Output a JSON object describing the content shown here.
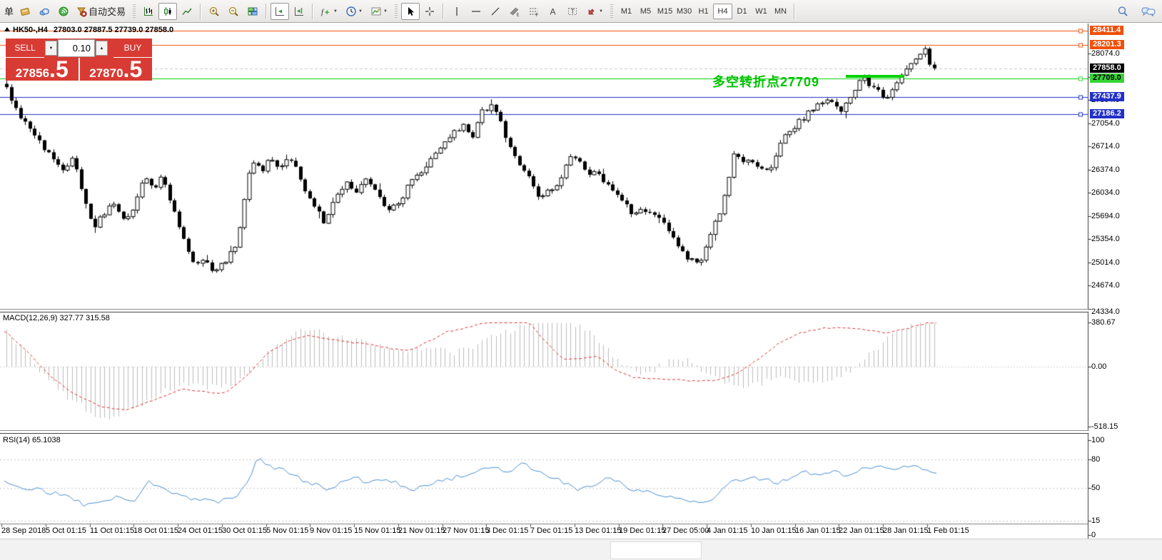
{
  "toolbar": {
    "new_order_label": "单",
    "autotrading_label": "自动交易",
    "timeframes": [
      "M1",
      "M5",
      "M15",
      "M30",
      "H1",
      "H4",
      "D1",
      "W1",
      "MN"
    ],
    "active_timeframe": "H4"
  },
  "chart_header": {
    "symbol_period": "HK50-,H4",
    "ohlc": "27803.0 27887.5 27739.0 27858.0"
  },
  "trade_panel": {
    "sell_label": "SELL",
    "buy_label": "BUY",
    "sell_price_main": "27856",
    "sell_price_pips": ".5",
    "buy_price_main": "27870",
    "buy_price_pips": ".5",
    "volume": "0.10"
  },
  "annotation": {
    "text": "多空转折点27709",
    "color": "#00c300"
  },
  "price_axis": {
    "ticks": [
      28074.0,
      27734.0,
      27394.0,
      27054.0,
      26714.0,
      26374.0,
      26034.0,
      25694.0,
      25354.0,
      25014.0,
      24674.0,
      24334.0
    ],
    "levels": [
      {
        "value": "28411.4",
        "price": 28411.4,
        "color": "#f0500a",
        "text_color": "#ffffff",
        "style": "solid"
      },
      {
        "value": "28201.3",
        "price": 28201.3,
        "color": "#f0500a",
        "text_color": "#ffffff",
        "style": "solid"
      },
      {
        "value": "27858.0",
        "price": 27858.0,
        "color": "#000000",
        "text_color": "#ffffff",
        "style": "current"
      },
      {
        "value": "27709.0",
        "price": 27709.0,
        "color": "#35d435",
        "text_color": "#000000",
        "style": "solid"
      },
      {
        "value": "27437.9",
        "price": 27437.9,
        "color": "#2230c8",
        "text_color": "#ffffff",
        "style": "solid"
      },
      {
        "value": "27186.2",
        "price": 27186.2,
        "color": "#2230c8",
        "text_color": "#ffffff",
        "style": "solid"
      }
    ]
  },
  "macd": {
    "label": "MACD(12,26,9) 327.77 315.58",
    "axis": [
      {
        "text": "380.67",
        "value": 380.67
      },
      {
        "text": "0.00",
        "value": 0
      },
      {
        "text": "-518.15",
        "value": -518.15
      }
    ]
  },
  "rsi": {
    "label": "RSI(14) 65.1038",
    "axis": [
      {
        "text": "100",
        "value": 100
      },
      {
        "text": "80",
        "value": 80
      },
      {
        "text": "50",
        "value": 50
      },
      {
        "text": "15",
        "value": 15
      },
      {
        "text": "0",
        "value": 0
      }
    ],
    "level_lines": [
      80,
      50,
      15
    ]
  },
  "time_axis": {
    "labels": [
      "28 Sep 2018",
      "5 Oct 01:15",
      "11 Oct 01:15",
      "18 Oct 01:15",
      "24 Oct 01:15",
      "30 Oct 01:15",
      "5 Nov 01:15",
      "9 Nov 01:15",
      "15 Nov 01:15",
      "21 Nov 01:15",
      "27 Nov 01:15",
      "3 Dec 01:15",
      "7 Dec 01:15",
      "13 Dec 01:15",
      "19 Dec 01:15",
      "27 Dec 05:00",
      "4 Jan 01:15",
      "10 Jan 01:15",
      "16 Jan 01:15",
      "22 Jan 01:15",
      "28 Jan 01:15",
      "1 Feb 01:15"
    ]
  },
  "chart_data": [
    {
      "type": "candlestick",
      "title": "HK50-,H4",
      "symbol": "HK50",
      "period": "H4",
      "current_ohlc": {
        "open": 27803.0,
        "high": 27887.5,
        "low": 27739.0,
        "close": 27858.0
      },
      "ylim": [
        24334,
        28490
      ],
      "grid": false,
      "close_path": [
        [
          0.002,
          27600
        ],
        [
          0.011,
          27280
        ],
        [
          0.03,
          26950
        ],
        [
          0.049,
          26560
        ],
        [
          0.064,
          26380
        ],
        [
          0.074,
          26520
        ],
        [
          0.086,
          25950
        ],
        [
          0.095,
          25520
        ],
        [
          0.109,
          25760
        ],
        [
          0.118,
          25860
        ],
        [
          0.129,
          25620
        ],
        [
          0.141,
          25900
        ],
        [
          0.15,
          26320
        ],
        [
          0.16,
          26120
        ],
        [
          0.17,
          26260
        ],
        [
          0.181,
          25820
        ],
        [
          0.193,
          25330
        ],
        [
          0.204,
          24980
        ],
        [
          0.214,
          25030
        ],
        [
          0.225,
          24900
        ],
        [
          0.237,
          25010
        ],
        [
          0.248,
          25280
        ],
        [
          0.256,
          25760
        ],
        [
          0.265,
          26560
        ],
        [
          0.275,
          26360
        ],
        [
          0.285,
          26500
        ],
        [
          0.298,
          26420
        ],
        [
          0.309,
          26560
        ],
        [
          0.321,
          26080
        ],
        [
          0.332,
          25880
        ],
        [
          0.344,
          25560
        ],
        [
          0.355,
          26010
        ],
        [
          0.367,
          26160
        ],
        [
          0.378,
          26060
        ],
        [
          0.39,
          26260
        ],
        [
          0.401,
          25960
        ],
        [
          0.413,
          25770
        ],
        [
          0.424,
          25910
        ],
        [
          0.436,
          26210
        ],
        [
          0.447,
          26310
        ],
        [
          0.459,
          26560
        ],
        [
          0.47,
          26710
        ],
        [
          0.482,
          26910
        ],
        [
          0.492,
          27010
        ],
        [
          0.501,
          26820
        ],
        [
          0.514,
          27260
        ],
        [
          0.524,
          27310
        ],
        [
          0.535,
          26960
        ],
        [
          0.548,
          26560
        ],
        [
          0.56,
          26310
        ],
        [
          0.573,
          25960
        ],
        [
          0.587,
          26110
        ],
        [
          0.599,
          26260
        ],
        [
          0.609,
          26660
        ],
        [
          0.622,
          26360
        ],
        [
          0.635,
          26310
        ],
        [
          0.648,
          26110
        ],
        [
          0.66,
          25960
        ],
        [
          0.673,
          25760
        ],
        [
          0.686,
          25810
        ],
        [
          0.698,
          25710
        ],
        [
          0.711,
          25510
        ],
        [
          0.723,
          25210
        ],
        [
          0.734,
          25060
        ],
        [
          0.746,
          24960
        ],
        [
          0.756,
          25360
        ],
        [
          0.769,
          25810
        ],
        [
          0.782,
          26560
        ],
        [
          0.795,
          26510
        ],
        [
          0.808,
          26410
        ],
        [
          0.821,
          26310
        ],
        [
          0.834,
          26810
        ],
        [
          0.847,
          27010
        ],
        [
          0.86,
          27160
        ],
        [
          0.874,
          27360
        ],
        [
          0.885,
          27460
        ],
        [
          0.897,
          27210
        ],
        [
          0.91,
          27510
        ],
        [
          0.922,
          27710
        ],
        [
          0.933,
          27560
        ],
        [
          0.945,
          27410
        ],
        [
          0.956,
          27660
        ],
        [
          0.968,
          27810
        ],
        [
          0.979,
          28010
        ],
        [
          0.987,
          28160
        ],
        [
          0.992,
          27920
        ],
        [
          0.997,
          27858
        ]
      ]
    },
    {
      "type": "bar",
      "name": "MACD histogram",
      "ylim": [
        -518.15,
        380.67
      ],
      "points": [
        [
          0.002,
          300
        ],
        [
          0.02,
          150
        ],
        [
          0.04,
          -50
        ],
        [
          0.07,
          -280
        ],
        [
          0.1,
          -420
        ],
        [
          0.12,
          -430
        ],
        [
          0.15,
          -300
        ],
        [
          0.19,
          -150
        ],
        [
          0.22,
          -180
        ],
        [
          0.25,
          -140
        ],
        [
          0.27,
          20
        ],
        [
          0.29,
          180
        ],
        [
          0.31,
          300
        ],
        [
          0.33,
          320
        ],
        [
          0.35,
          260
        ],
        [
          0.38,
          220
        ],
        [
          0.4,
          180
        ],
        [
          0.42,
          120
        ],
        [
          0.44,
          140
        ],
        [
          0.46,
          150
        ],
        [
          0.48,
          120
        ],
        [
          0.5,
          160
        ],
        [
          0.52,
          240
        ],
        [
          0.55,
          330
        ],
        [
          0.57,
          400
        ],
        [
          0.59,
          420
        ],
        [
          0.61,
          380
        ],
        [
          0.63,
          280
        ],
        [
          0.65,
          120
        ],
        [
          0.67,
          -20
        ],
        [
          0.69,
          -60
        ],
        [
          0.71,
          40
        ],
        [
          0.73,
          60
        ],
        [
          0.75,
          -40
        ],
        [
          0.77,
          -120
        ],
        [
          0.79,
          -160
        ],
        [
          0.81,
          -140
        ],
        [
          0.83,
          -100
        ],
        [
          0.85,
          -130
        ],
        [
          0.87,
          -160
        ],
        [
          0.89,
          -100
        ],
        [
          0.91,
          -20
        ],
        [
          0.93,
          120
        ],
        [
          0.95,
          260
        ],
        [
          0.97,
          340
        ],
        [
          0.99,
          380
        ]
      ]
    },
    {
      "type": "line",
      "name": "MACD signal",
      "style": "dashed-red",
      "points": [
        [
          0.002,
          300
        ],
        [
          0.026,
          120
        ],
        [
          0.049,
          -80
        ],
        [
          0.072,
          -220
        ],
        [
          0.103,
          -340
        ],
        [
          0.13,
          -375
        ],
        [
          0.156,
          -300
        ],
        [
          0.191,
          -190
        ],
        [
          0.214,
          -215
        ],
        [
          0.237,
          -230
        ],
        [
          0.26,
          -80
        ],
        [
          0.283,
          120
        ],
        [
          0.306,
          230
        ],
        [
          0.325,
          265
        ],
        [
          0.348,
          240
        ],
        [
          0.371,
          210
        ],
        [
          0.394,
          190
        ],
        [
          0.417,
          150
        ],
        [
          0.436,
          140
        ],
        [
          0.456,
          220
        ],
        [
          0.475,
          300
        ],
        [
          0.498,
          340
        ],
        [
          0.521,
          390
        ],
        [
          0.544,
          405
        ],
        [
          0.563,
          380
        ],
        [
          0.582,
          200
        ],
        [
          0.601,
          60
        ],
        [
          0.62,
          70
        ],
        [
          0.636,
          90
        ],
        [
          0.655,
          -30
        ],
        [
          0.674,
          -90
        ],
        [
          0.697,
          -105
        ],
        [
          0.72,
          -110
        ],
        [
          0.743,
          -125
        ],
        [
          0.762,
          -120
        ],
        [
          0.785,
          -60
        ],
        [
          0.808,
          60
        ],
        [
          0.831,
          200
        ],
        [
          0.854,
          290
        ],
        [
          0.877,
          330
        ],
        [
          0.9,
          335
        ],
        [
          0.923,
          320
        ],
        [
          0.946,
          290
        ],
        [
          0.969,
          330
        ],
        [
          0.992,
          380
        ]
      ]
    },
    {
      "type": "line",
      "name": "RSI(14)",
      "current": 65.1038,
      "ylim": [
        0,
        100
      ],
      "points": [
        [
          0.0,
          55
        ],
        [
          0.02,
          50
        ],
        [
          0.05,
          45
        ],
        [
          0.07,
          42
        ],
        [
          0.085,
          32
        ],
        [
          0.1,
          36
        ],
        [
          0.12,
          40
        ],
        [
          0.14,
          36
        ],
        [
          0.155,
          55
        ],
        [
          0.175,
          46
        ],
        [
          0.2,
          38
        ],
        [
          0.23,
          36
        ],
        [
          0.25,
          42
        ],
        [
          0.262,
          58
        ],
        [
          0.272,
          80
        ],
        [
          0.285,
          72
        ],
        [
          0.3,
          68
        ],
        [
          0.315,
          60
        ],
        [
          0.33,
          55
        ],
        [
          0.345,
          48
        ],
        [
          0.36,
          55
        ],
        [
          0.375,
          60
        ],
        [
          0.39,
          56
        ],
        [
          0.41,
          60
        ],
        [
          0.425,
          52
        ],
        [
          0.44,
          48
        ],
        [
          0.455,
          52
        ],
        [
          0.47,
          58
        ],
        [
          0.49,
          62
        ],
        [
          0.51,
          68
        ],
        [
          0.525,
          72
        ],
        [
          0.54,
          65
        ],
        [
          0.555,
          75
        ],
        [
          0.57,
          70
        ],
        [
          0.585,
          62
        ],
        [
          0.6,
          55
        ],
        [
          0.615,
          48
        ],
        [
          0.63,
          52
        ],
        [
          0.645,
          60
        ],
        [
          0.66,
          55
        ],
        [
          0.675,
          48
        ],
        [
          0.69,
          45
        ],
        [
          0.71,
          42
        ],
        [
          0.73,
          38
        ],
        [
          0.75,
          35
        ],
        [
          0.765,
          42
        ],
        [
          0.78,
          55
        ],
        [
          0.8,
          60
        ],
        [
          0.815,
          58
        ],
        [
          0.83,
          56
        ],
        [
          0.845,
          62
        ],
        [
          0.86,
          66
        ],
        [
          0.875,
          64
        ],
        [
          0.89,
          68
        ],
        [
          0.905,
          62
        ],
        [
          0.92,
          70
        ],
        [
          0.935,
          73
        ],
        [
          0.95,
          68
        ],
        [
          0.965,
          72
        ],
        [
          0.98,
          74
        ],
        [
          0.99,
          68
        ],
        [
          1.0,
          65.1
        ]
      ]
    }
  ]
}
